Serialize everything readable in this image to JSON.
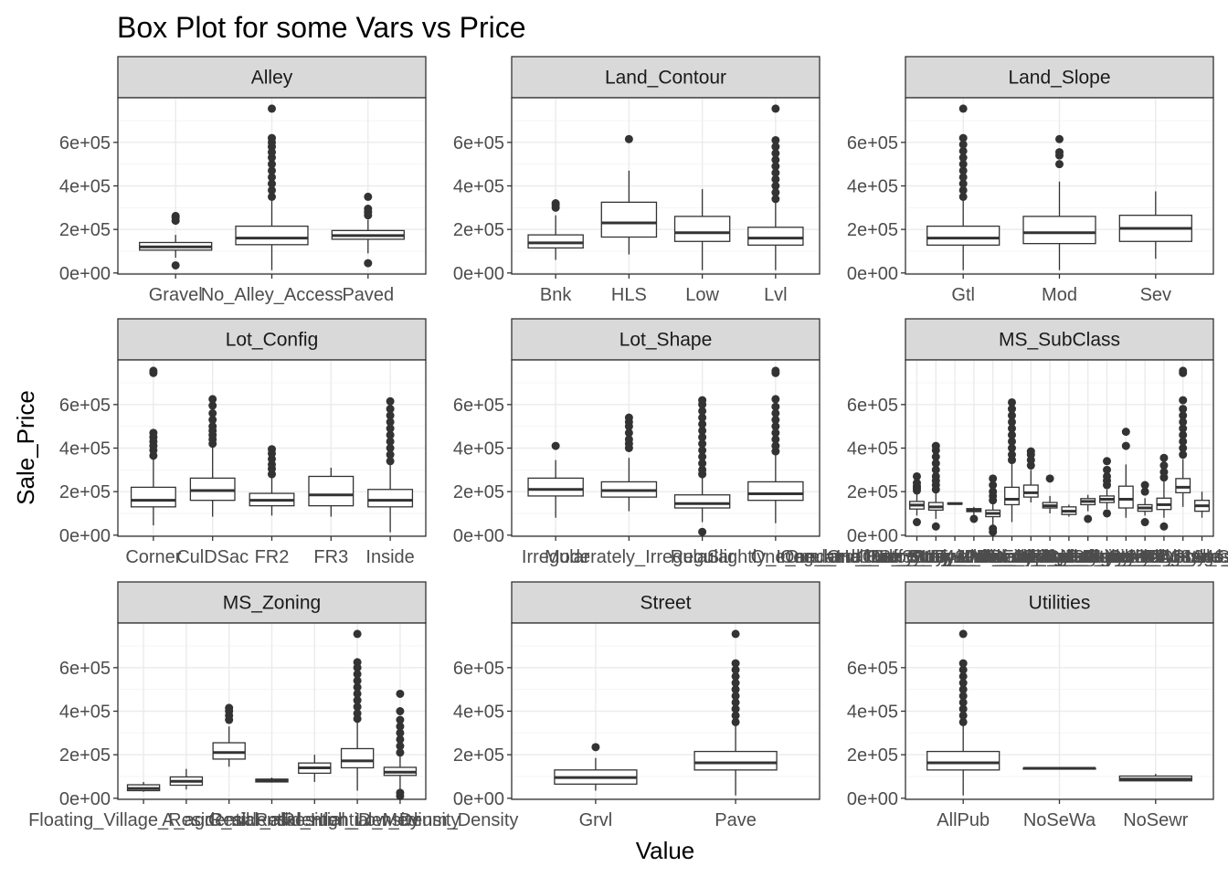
{
  "chart_data": {
    "type": "boxplot",
    "title": "Box Plot for some Vars vs Price",
    "xlabel": "Value",
    "ylabel": "Sale_Price",
    "ylim": [
      -5000,
      805000
    ],
    "yticks": [
      0,
      200000,
      400000,
      600000
    ],
    "ytick_labels": [
      "0e+00",
      "2e+05",
      "4e+05",
      "6e+05"
    ],
    "theme": "bw",
    "grid": true,
    "facets": [
      {
        "name": "Alley",
        "categories": [
          "Gravel",
          "No_Alley_Access",
          "Paved"
        ],
        "boxes": [
          {
            "lower": 70000,
            "q1": 105000,
            "median": 120000,
            "q3": 140000,
            "upper": 175000,
            "outliers": [
              35000,
              240000,
              255000,
              262000
            ]
          },
          {
            "lower": 13000,
            "q1": 130000,
            "median": 160000,
            "q3": 215000,
            "upper": 340000,
            "outliers": [
              350000,
              380000,
              410000,
              440000,
              470000,
              500000,
              530000,
              555000,
              580000,
              600000,
              620000,
              755000
            ]
          },
          {
            "lower": 90000,
            "q1": 155000,
            "median": 172000,
            "q3": 195000,
            "upper": 245000,
            "outliers": [
              45000,
              265000,
              280000,
              295000,
              350000
            ]
          }
        ]
      },
      {
        "name": "Land_Contour",
        "categories": [
          "Bnk",
          "HLS",
          "Low",
          "Lvl"
        ],
        "boxes": [
          {
            "lower": 60000,
            "q1": 115000,
            "median": 138000,
            "q3": 175000,
            "upper": 265000,
            "outliers": [
              300000,
              312000,
              320000
            ]
          },
          {
            "lower": 85000,
            "q1": 165000,
            "median": 230000,
            "q3": 325000,
            "upper": 470000,
            "outliers": [
              615000
            ]
          },
          {
            "lower": 13000,
            "q1": 145000,
            "median": 185000,
            "q3": 260000,
            "upper": 385000,
            "outliers": []
          },
          {
            "lower": 13000,
            "q1": 128000,
            "median": 160000,
            "q3": 210000,
            "upper": 330000,
            "outliers": [
              340000,
              370000,
              400000,
              430000,
              460000,
              490000,
              520000,
              550000,
              580000,
              610000,
              755000
            ]
          }
        ]
      },
      {
        "name": "Land_Slope",
        "categories": [
          "Gtl",
          "Mod",
          "Sev"
        ],
        "boxes": [
          {
            "lower": 13000,
            "q1": 128000,
            "median": 160000,
            "q3": 215000,
            "upper": 340000,
            "outliers": [
              350000,
              380000,
              410000,
              440000,
              470000,
              500000,
              530000,
              560000,
              590000,
              620000,
              755000
            ]
          },
          {
            "lower": 13000,
            "q1": 135000,
            "median": 185000,
            "q3": 260000,
            "upper": 420000,
            "outliers": [
              500000,
              540000,
              555000,
              615000
            ]
          },
          {
            "lower": 65000,
            "q1": 145000,
            "median": 205000,
            "q3": 265000,
            "upper": 375000,
            "outliers": []
          }
        ]
      },
      {
        "name": "Lot_Config",
        "categories": [
          "Corner",
          "CulDSac",
          "FR2",
          "FR3",
          "Inside"
        ],
        "boxes": [
          {
            "lower": 45000,
            "q1": 130000,
            "median": 160000,
            "q3": 220000,
            "upper": 355000,
            "outliers": [
              365000,
              390000,
              410000,
              430000,
              450000,
              470000,
              745000,
              755000
            ]
          },
          {
            "lower": 85000,
            "q1": 160000,
            "median": 205000,
            "q3": 262000,
            "upper": 410000,
            "outliers": [
              420000,
              440000,
              460000,
              480000,
              500000,
              530000,
              560000,
              595000,
              625000
            ]
          },
          {
            "lower": 90000,
            "q1": 135000,
            "median": 160000,
            "q3": 192000,
            "upper": 272000,
            "outliers": [
              280000,
              305000,
              325000,
              350000,
              375000,
              395000
            ]
          },
          {
            "lower": 85000,
            "q1": 135000,
            "median": 185000,
            "q3": 270000,
            "upper": 310000,
            "outliers": []
          },
          {
            "lower": 13000,
            "q1": 130000,
            "median": 160000,
            "q3": 210000,
            "upper": 330000,
            "outliers": [
              340000,
              370000,
              400000,
              430000,
              460000,
              490000,
              520000,
              550000,
              580000,
              615000
            ]
          }
        ]
      },
      {
        "name": "Lot_Shape",
        "categories": [
          "Irregular",
          "Moderately_Irregular",
          "Regular",
          "Slightly_Irregular"
        ],
        "boxes": [
          {
            "lower": 80000,
            "q1": 180000,
            "median": 210000,
            "q3": 262000,
            "upper": 345000,
            "outliers": [
              410000
            ]
          },
          {
            "lower": 110000,
            "q1": 175000,
            "median": 205000,
            "q3": 245000,
            "upper": 355000,
            "outliers": [
              400000,
              420000,
              440000,
              470000,
              500000,
              520000,
              540000
            ]
          },
          {
            "lower": 60000,
            "q1": 125000,
            "median": 145000,
            "q3": 185000,
            "upper": 270000,
            "outliers": [
              15000,
              280000,
              300000,
              330000,
              360000,
              390000,
              420000,
              450000,
              480000,
              510000,
              540000,
              570000,
              600000,
              620000
            ]
          },
          {
            "lower": 55000,
            "q1": 160000,
            "median": 190000,
            "q3": 245000,
            "upper": 370000,
            "outliers": [
              385000,
              410000,
              440000,
              470000,
              500000,
              530000,
              560000,
              590000,
              625000,
              745000,
              755000
            ]
          }
        ]
      },
      {
        "name": "MS_SubClass",
        "categories": [
          "One_and_Half_Story_Finished_All_Ages",
          "One_and_Half_Story_PUD_All_Ages",
          "One_and_Half_Story_Unfinished_All_Ages",
          "One_Story_1945_and_Older",
          "One_Story_1946_and_Newer_All_Styles",
          "One_Story_PUD_1946_and_Newer",
          "One_Story_with_Finished_Attic_All_Ages",
          "PUD_Multilevel_Split_Level_Foyer",
          "Split_Foyer",
          "Split_or_Multilevel",
          "Two_and_Half_Story_All_Ages",
          "Two_Family_conversion_All_Styles_and_Ages",
          "Two_Story_1945_and_Older",
          "Two_Story_1946_and_Newer",
          "Two_Story_PUD_1946_and_Newer",
          "Duplex_All_Styles_and_Ages"
        ],
        "boxes": [
          {
            "lower": 90000,
            "q1": 120000,
            "median": 138000,
            "q3": 155000,
            "upper": 195000,
            "outliers": [
              60000,
              205000,
              215000,
              225000,
              240000,
              270000
            ]
          },
          {
            "lower": 75000,
            "q1": 115000,
            "median": 130000,
            "q3": 150000,
            "upper": 200000,
            "outliers": [
              40000,
              210000,
              230000,
              250000,
              270000,
              300000,
              330000,
              360000,
              390000,
              410000
            ]
          },
          {
            "lower": 142000,
            "q1": 142000,
            "median": 145000,
            "q3": 148000,
            "upper": 150000,
            "outliers": []
          },
          {
            "lower": 90000,
            "q1": 108000,
            "median": 115000,
            "q3": 122000,
            "upper": 130000,
            "outliers": [
              75000
            ]
          },
          {
            "lower": 40000,
            "q1": 85000,
            "median": 100000,
            "q3": 115000,
            "upper": 150000,
            "outliers": [
              15000,
              30000,
              160000,
              180000,
              200000,
              230000,
              260000
            ]
          },
          {
            "lower": 60000,
            "q1": 140000,
            "median": 165000,
            "q3": 220000,
            "upper": 330000,
            "outliers": [
              345000,
              370000,
              400000,
              430000,
              460000,
              490000,
              520000,
              550000,
              580000,
              610000
            ]
          },
          {
            "lower": 150000,
            "q1": 175000,
            "median": 195000,
            "q3": 230000,
            "upper": 300000,
            "outliers": [
              320000,
              345000,
              370000,
              385000
            ]
          },
          {
            "lower": 100000,
            "q1": 125000,
            "median": 135000,
            "q3": 150000,
            "upper": 180000,
            "outliers": [
              260000
            ]
          },
          {
            "lower": 85000,
            "q1": 95000,
            "median": 110000,
            "q3": 130000,
            "upper": 140000,
            "outliers": []
          },
          {
            "lower": 110000,
            "q1": 140000,
            "median": 155000,
            "q3": 168000,
            "upper": 185000,
            "outliers": [
              75000
            ]
          },
          {
            "lower": 120000,
            "q1": 150000,
            "median": 165000,
            "q3": 180000,
            "upper": 210000,
            "outliers": [
              100000,
              230000,
              250000,
              270000,
              300000,
              340000
            ]
          },
          {
            "lower": 80000,
            "q1": 125000,
            "median": 165000,
            "q3": 225000,
            "upper": 325000,
            "outliers": [
              410000,
              475000
            ]
          },
          {
            "lower": 90000,
            "q1": 110000,
            "median": 125000,
            "q3": 140000,
            "upper": 170000,
            "outliers": [
              60000,
              200000,
              230000
            ]
          },
          {
            "lower": 80000,
            "q1": 118000,
            "median": 140000,
            "q3": 170000,
            "upper": 250000,
            "outliers": [
              40000,
              265000,
              290000,
              320000,
              355000
            ]
          },
          {
            "lower": 130000,
            "q1": 195000,
            "median": 220000,
            "q3": 260000,
            "upper": 350000,
            "outliers": [
              370000,
              400000,
              430000,
              460000,
              490000,
              520000,
              550000,
              580000,
              620000,
              745000,
              755000
            ]
          },
          {
            "lower": 80000,
            "q1": 110000,
            "median": 135000,
            "q3": 160000,
            "upper": 200000,
            "outliers": []
          }
        ]
      },
      {
        "name": "MS_Zoning",
        "categories": [
          "Floating_Village_Residential",
          "A_agr",
          "C_all",
          "I_all",
          "Residential_High_Density",
          "Residential_Low_Density",
          "Residential_Medium_Density"
        ],
        "boxes": [
          {
            "lower": 30000,
            "q1": 35000,
            "median": 45000,
            "q3": 62000,
            "upper": 75000,
            "outliers": []
          },
          {
            "lower": 40000,
            "q1": 60000,
            "median": 78000,
            "q3": 98000,
            "upper": 135000,
            "outliers": []
          },
          {
            "lower": 145000,
            "q1": 180000,
            "median": 210000,
            "q3": 255000,
            "upper": 330000,
            "outliers": [
              360000,
              380000,
              400000,
              415000
            ]
          },
          {
            "lower": 72000,
            "q1": 75000,
            "median": 80000,
            "q3": 88000,
            "upper": 95000,
            "outliers": []
          },
          {
            "lower": 75000,
            "q1": 115000,
            "median": 140000,
            "q3": 162000,
            "upper": 200000,
            "outliers": []
          },
          {
            "lower": 35000,
            "q1": 140000,
            "median": 172000,
            "q3": 228000,
            "upper": 355000,
            "outliers": [
              365000,
              390000,
              420000,
              450000,
              480000,
              510000,
              540000,
              570000,
              600000,
              625000,
              755000
            ]
          },
          {
            "lower": 30000,
            "q1": 105000,
            "median": 120000,
            "q3": 142000,
            "upper": 195000,
            "outliers": [
              10000,
              25000,
              210000,
              240000,
              270000,
              300000,
              330000,
              360000,
              400000,
              480000
            ]
          }
        ]
      },
      {
        "name": "Street",
        "categories": [
          "Grvl",
          "Pave"
        ],
        "boxes": [
          {
            "lower": 35000,
            "q1": 65000,
            "median": 95000,
            "q3": 130000,
            "upper": 185000,
            "outliers": [
              235000
            ]
          },
          {
            "lower": 13000,
            "q1": 130000,
            "median": 163000,
            "q3": 215000,
            "upper": 340000,
            "outliers": [
              350000,
              380000,
              410000,
              440000,
              470000,
              500000,
              530000,
              560000,
              590000,
              620000,
              755000
            ]
          }
        ]
      },
      {
        "name": "Utilities",
        "categories": [
          "AllPub",
          "NoSeWa",
          "NoSewr"
        ],
        "boxes": [
          {
            "lower": 13000,
            "q1": 130000,
            "median": 163000,
            "q3": 215000,
            "upper": 340000,
            "outliers": [
              350000,
              380000,
              410000,
              440000,
              470000,
              500000,
              530000,
              560000,
              590000,
              620000,
              755000
            ]
          },
          {
            "lower": 137000,
            "q1": 137000,
            "median": 137500,
            "q3": 138000,
            "upper": 138000,
            "outliers": []
          },
          {
            "lower": 78000,
            "q1": 80000,
            "median": 88000,
            "q3": 102000,
            "upper": 112000,
            "outliers": []
          }
        ]
      }
    ]
  }
}
